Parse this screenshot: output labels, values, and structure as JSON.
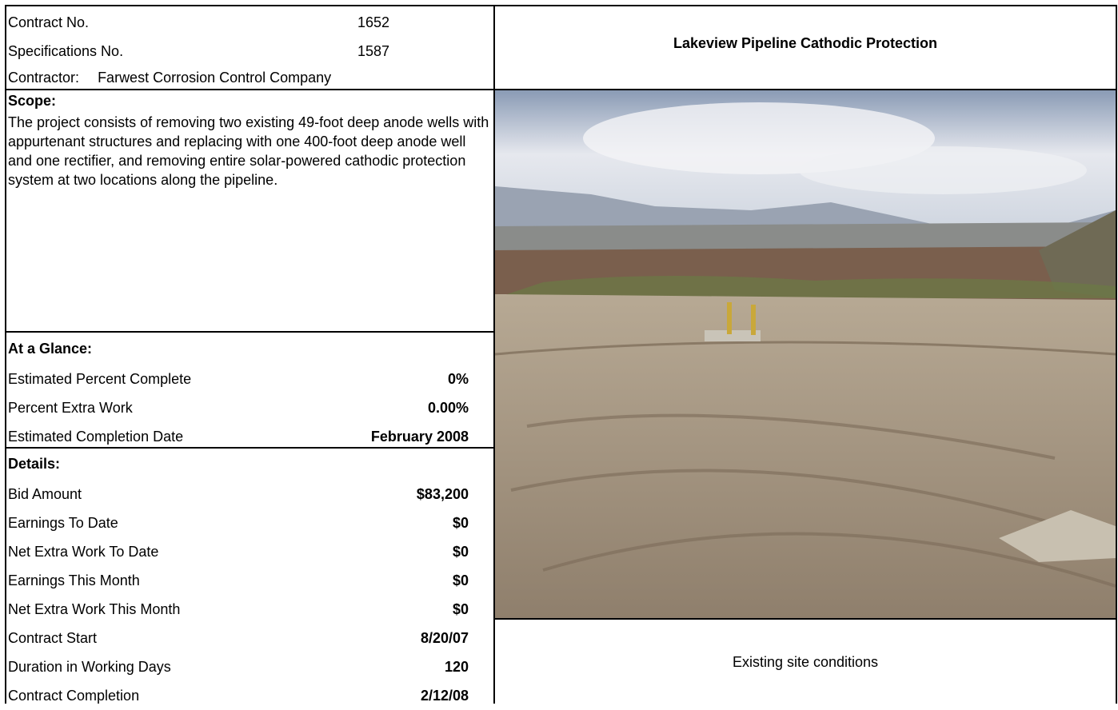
{
  "header": {
    "title": "Lakeview Pipeline Cathodic Protection",
    "fields": [
      {
        "label": "Contract No.",
        "value": "1652"
      },
      {
        "label": "Specifications No.",
        "value": "1587"
      }
    ],
    "contractor": {
      "label": "Contractor:",
      "value": "Farwest Corrosion Control Company"
    }
  },
  "scope": {
    "heading": "Scope:",
    "text": "The project consists of removing two existing 49-foot deep anode wells with appurtenant structures and replacing with one 400-foot deep anode well and one rectifier, and removing entire solar-powered cathodic protection system at two locations along the pipeline."
  },
  "at_a_glance": {
    "heading": "At a Glance:",
    "rows": [
      {
        "label": "Estimated Percent Complete",
        "value": "0%"
      },
      {
        "label": "Percent Extra Work",
        "value": "0.00%"
      },
      {
        "label": "Estimated Completion Date",
        "value": "February 2008"
      }
    ]
  },
  "details": {
    "heading": "Details:",
    "rows": [
      {
        "label": "Bid Amount",
        "value": "$83,200"
      },
      {
        "label": "Earnings To Date",
        "value": "$0"
      },
      {
        "label": "Net Extra Work To Date",
        "value": "$0"
      },
      {
        "label": "Earnings This Month",
        "value": "$0"
      },
      {
        "label": "Net Extra Work This Month",
        "value": "$0"
      },
      {
        "label": "Contract Start",
        "value": "8/20/07"
      },
      {
        "label": "Duration in Working Days",
        "value": "120"
      },
      {
        "label": "Contract Completion",
        "value": "2/12/08"
      }
    ]
  },
  "photo": {
    "caption": "Existing site conditions"
  }
}
